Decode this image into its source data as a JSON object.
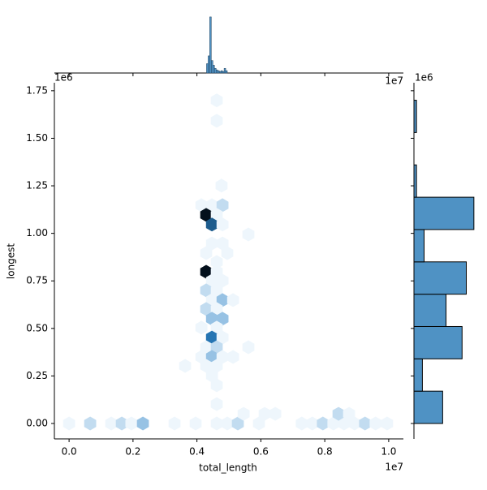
{
  "chart_data": {
    "type": "hexbin",
    "x_label": "total_length",
    "y_label": "longest",
    "x_offset_label": "1e7",
    "y_offset_label": "1e6",
    "xlim": [
      -0.046,
      1.046
    ],
    "ylim": [
      -0.081,
      1.792
    ],
    "xticks": [
      {
        "value": 0,
        "label": "0.0"
      },
      0.2,
      0.4,
      0.6,
      0.8,
      {
        "value": 1,
        "label": "1.0"
      }
    ],
    "yticks": [
      {
        "value": 0,
        "label": "0.00"
      },
      0.25,
      {
        "value": 0.5,
        "label": "0.50"
      },
      0.75,
      {
        "value": 1,
        "label": "1.00"
      },
      1.25,
      {
        "value": 1.5,
        "label": "1.50"
      },
      1.75
    ],
    "colormap": [
      "#eef6fc",
      "#2a82c6",
      "#03101c"
    ],
    "hexes": {
      "x": [
        0.462,
        0.462,
        0.477,
        0.414,
        0.447,
        0.48,
        0.429,
        0.462,
        0.447,
        0.48,
        0.561,
        0.447,
        0.48,
        0.429,
        0.495,
        0.462,
        0.429,
        0.462,
        0.447,
        0.48,
        0.429,
        0.462,
        0.447,
        0.48,
        0.513,
        0.429,
        0.462,
        0.447,
        0.48,
        0.414,
        0.462,
        0.447,
        0.48,
        0.429,
        0.462,
        0.561,
        0.414,
        0.447,
        0.48,
        0.513,
        0.363,
        0.429,
        0.462,
        0.447,
        0.462,
        0.462,
        0,
        0.066,
        0.132,
        0.165,
        0.195,
        0.231,
        0.33,
        0.396,
        0.462,
        0.495,
        0.528,
        0.594,
        0.728,
        0.761,
        0.794,
        0.827,
        0.86,
        0.893,
        0.926,
        0.959,
        0.995,
        0.546,
        0.612,
        0.645,
        0.843,
        0.876
      ],
      "y": [
        1.699,
        1.592,
        1.251,
        1.148,
        1.148,
        1.148,
        1.097,
        1.097,
        1.046,
        1.046,
        0.994,
        0.947,
        0.947,
        0.896,
        0.896,
        0.849,
        0.798,
        0.798,
        0.751,
        0.751,
        0.7,
        0.7,
        0.649,
        0.649,
        0.649,
        0.602,
        0.602,
        0.551,
        0.551,
        0.504,
        0.504,
        0.452,
        0.452,
        0.401,
        0.401,
        0.401,
        0.35,
        0.35,
        0.35,
        0.35,
        0.303,
        0.303,
        0.303,
        0.252,
        0.201,
        0.102,
        0,
        0,
        0,
        0,
        0,
        0,
        0,
        0,
        0,
        0,
        0,
        0,
        0,
        0,
        0,
        0,
        0,
        0,
        0,
        0,
        0,
        0.051,
        0.051,
        0.051,
        0.051,
        0.051
      ],
      "counts": [
        1,
        1,
        1,
        1,
        1,
        2,
        10,
        1,
        7,
        1,
        1,
        1,
        1,
        1,
        1,
        1,
        10,
        1,
        1,
        1,
        2,
        1,
        1,
        3,
        1,
        2,
        1,
        3,
        3,
        1,
        1,
        6,
        1,
        1,
        2,
        1,
        1,
        3,
        1,
        1,
        1,
        1,
        1,
        1,
        1,
        1,
        1,
        2,
        1,
        2,
        1,
        3,
        1,
        1,
        1,
        1,
        2,
        1,
        1,
        1,
        2,
        1,
        1,
        1,
        2,
        1,
        1,
        1,
        1,
        1,
        2,
        1
      ]
    },
    "marginal_color": "#4f92c4",
    "marginal_x": {
      "bins": [
        0.43,
        0.435,
        0.44,
        0.445,
        0.45,
        0.455,
        0.46,
        0.465,
        0.47,
        0.475,
        0.48,
        0.485,
        0.49,
        0.495
      ],
      "counts": [
        12,
        22,
        72,
        16,
        10,
        6,
        4,
        3,
        2,
        3,
        2,
        6,
        3
      ],
      "ylim": [
        0,
        75
      ]
    },
    "marginal_y": {
      "bins": [
        0,
        0.17,
        0.34,
        0.51,
        0.68,
        0.85,
        1.02,
        1.19,
        1.36,
        1.53,
        1.7
      ],
      "counts": [
        34,
        10,
        57,
        38,
        62,
        12,
        71,
        3,
        0,
        3
      ],
      "xlim": [
        0,
        75
      ]
    }
  }
}
